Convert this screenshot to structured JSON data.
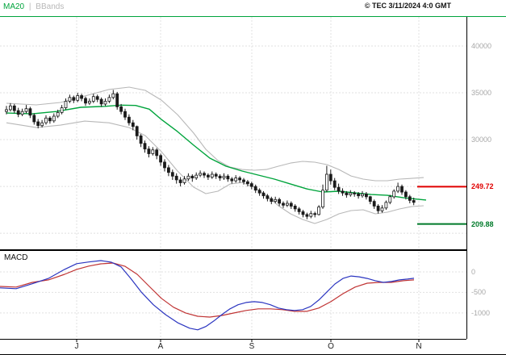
{
  "header": {
    "legend": {
      "ma20_label": "MA20",
      "separator": "|",
      "bbands_label": "BBands"
    },
    "copyright": "© TEC 3/11/2024 4:0 GMT"
  },
  "macd_label": "MACD",
  "colors": {
    "ma20": "#00a43c",
    "bbands": "#b8b8b8",
    "candle": "#1a1a1a",
    "macd": "#2b35c0",
    "signal": "#c03434",
    "resistance": "#e00000",
    "support": "#007a2a",
    "grid": "#e0e0e0",
    "axis": "#000000",
    "tick_text": "#a8a8a8",
    "header_line": "#00a43c"
  },
  "chart_data": {
    "type": "candlestick_with_macd",
    "title": "",
    "x_axis": {
      "tick_labels": [
        "J",
        "A",
        "S",
        "O",
        "N"
      ],
      "tick_x": [
        95,
        199,
        312,
        410,
        519
      ]
    },
    "price_panel": {
      "ylim": [
        18200,
        43100
      ],
      "yticks": [
        {
          "v": 40000,
          "label": "40000"
        },
        {
          "v": 35000,
          "label": "35000"
        },
        {
          "v": 30000,
          "label": "30000"
        }
      ],
      "gridlines": [
        40000,
        35000,
        30000,
        25000,
        20000
      ],
      "resistance": {
        "value": 24972,
        "label": "249.72"
      },
      "support": {
        "value": 20988,
        "label": "209.88"
      },
      "candles": [
        [
          33000,
          33600,
          32700,
          33200
        ],
        [
          33200,
          33900,
          33000,
          33600
        ],
        [
          33600,
          33800,
          32800,
          33100
        ],
        [
          33100,
          33400,
          32400,
          32700
        ],
        [
          32700,
          33300,
          32500,
          33000
        ],
        [
          33000,
          33700,
          32800,
          33300
        ],
        [
          33300,
          33500,
          32300,
          32600
        ],
        [
          32600,
          32800,
          31600,
          31900
        ],
        [
          31900,
          32200,
          31200,
          31500
        ],
        [
          31500,
          32100,
          31300,
          31800
        ],
        [
          31800,
          32600,
          31600,
          32300
        ],
        [
          32300,
          32500,
          31700,
          32000
        ],
        [
          32000,
          32800,
          31800,
          32500
        ],
        [
          32500,
          33200,
          32300,
          32900
        ],
        [
          32900,
          33700,
          32700,
          33400
        ],
        [
          33400,
          34400,
          33200,
          34100
        ],
        [
          34100,
          34800,
          33900,
          34500
        ],
        [
          34500,
          34700,
          33900,
          34200
        ],
        [
          34200,
          35000,
          34000,
          34700
        ],
        [
          34700,
          34900,
          34100,
          34400
        ],
        [
          34400,
          34600,
          33600,
          33900
        ],
        [
          33900,
          34400,
          33700,
          34100
        ],
        [
          34100,
          34900,
          33900,
          34600
        ],
        [
          34600,
          34800,
          34000,
          34300
        ],
        [
          34300,
          34500,
          33500,
          33800
        ],
        [
          33800,
          34400,
          33600,
          34100
        ],
        [
          34100,
          34800,
          33900,
          34500
        ],
        [
          34500,
          35300,
          34300,
          34900
        ],
        [
          34900,
          35100,
          33200,
          33500
        ],
        [
          33500,
          33800,
          32700,
          33000
        ],
        [
          33000,
          33300,
          32100,
          32400
        ],
        [
          32400,
          32700,
          31500,
          31800
        ],
        [
          31800,
          32100,
          31000,
          31400
        ],
        [
          31400,
          31500,
          30000,
          30400
        ],
        [
          30400,
          30600,
          29200,
          29600
        ],
        [
          29600,
          29900,
          28600,
          29000
        ],
        [
          29000,
          29300,
          28100,
          28500
        ],
        [
          28500,
          29200,
          28300,
          28900
        ],
        [
          28900,
          29100,
          27900,
          28300
        ],
        [
          28300,
          28500,
          27200,
          27600
        ],
        [
          27600,
          27900,
          26600,
          27000
        ],
        [
          27000,
          27300,
          26100,
          26500
        ],
        [
          26500,
          26800,
          25700,
          26100
        ],
        [
          26100,
          26400,
          25300,
          25700
        ],
        [
          25700,
          26000,
          25000,
          25400
        ],
        [
          25400,
          26100,
          25200,
          25800
        ],
        [
          25800,
          26400,
          25600,
          26100
        ],
        [
          26100,
          26300,
          25500,
          25900
        ],
        [
          25900,
          26500,
          25700,
          26200
        ],
        [
          26200,
          26700,
          26000,
          26400
        ],
        [
          26400,
          26600,
          25900,
          26200
        ],
        [
          26200,
          26400,
          25700,
          26000
        ],
        [
          26000,
          26600,
          25800,
          26300
        ],
        [
          26300,
          26500,
          25800,
          26100
        ],
        [
          26100,
          26300,
          25600,
          25900
        ],
        [
          25900,
          26400,
          25700,
          26100
        ],
        [
          26100,
          26300,
          25500,
          25800
        ],
        [
          25800,
          26000,
          25300,
          25600
        ],
        [
          25600,
          26200,
          25400,
          25900
        ],
        [
          25900,
          26100,
          25400,
          25700
        ],
        [
          25700,
          25900,
          25200,
          25500
        ],
        [
          25500,
          25700,
          25000,
          25300
        ],
        [
          25300,
          25500,
          24700,
          25000
        ],
        [
          25000,
          25200,
          24300,
          24600
        ],
        [
          24600,
          24800,
          24000,
          24300
        ],
        [
          24300,
          24500,
          23700,
          24000
        ],
        [
          24000,
          24200,
          23400,
          23700
        ],
        [
          23700,
          23900,
          23100,
          23400
        ],
        [
          23400,
          23900,
          23200,
          23600
        ],
        [
          23600,
          23800,
          22900,
          23200
        ],
        [
          23200,
          23400,
          22700,
          23000
        ],
        [
          23000,
          23500,
          22800,
          23200
        ],
        [
          23200,
          23400,
          22600,
          22900
        ],
        [
          22900,
          23100,
          22300,
          22600
        ],
        [
          22600,
          22800,
          22000,
          22300
        ],
        [
          22300,
          22500,
          21700,
          22000
        ],
        [
          22000,
          22200,
          21500,
          21800
        ],
        [
          21800,
          22400,
          21600,
          22100
        ],
        [
          22100,
          22300,
          21700,
          22000
        ],
        [
          22000,
          23000,
          21900,
          22800
        ],
        [
          22800,
          25200,
          22600,
          24600
        ],
        [
          24600,
          27200,
          24400,
          26300
        ],
        [
          26300,
          26800,
          25200,
          25600
        ],
        [
          25600,
          25900,
          24600,
          24900
        ],
        [
          24900,
          25300,
          24200,
          24500
        ],
        [
          24500,
          24800,
          24000,
          24300
        ],
        [
          24300,
          24500,
          23800,
          24100
        ],
        [
          24100,
          24600,
          23900,
          24300
        ],
        [
          24300,
          24500,
          23900,
          24200
        ],
        [
          24200,
          24400,
          23700,
          24000
        ],
        [
          24000,
          24500,
          23800,
          24200
        ],
        [
          24200,
          24400,
          23600,
          23900
        ],
        [
          23900,
          24000,
          23100,
          23400
        ],
        [
          23400,
          23600,
          22600,
          22900
        ],
        [
          22900,
          23100,
          22100,
          22400
        ],
        [
          22400,
          23000,
          22200,
          22700
        ],
        [
          22700,
          23500,
          22500,
          23300
        ],
        [
          23300,
          24100,
          23100,
          23900
        ],
        [
          23900,
          24700,
          23700,
          24500
        ],
        [
          24500,
          25400,
          24300,
          25000
        ],
        [
          25000,
          25200,
          24100,
          24400
        ],
        [
          24400,
          24600,
          23600,
          23900
        ],
        [
          23900,
          24100,
          23200,
          23500
        ],
        [
          23500,
          23800,
          23000,
          23300
        ]
      ],
      "ma20": [
        [
          8,
          32840
        ],
        [
          40,
          32750
        ],
        [
          70,
          33000
        ],
        [
          100,
          33450
        ],
        [
          130,
          33550
        ],
        [
          150,
          33680
        ],
        [
          168,
          33650
        ],
        [
          185,
          33250
        ],
        [
          200,
          32150
        ],
        [
          220,
          30860
        ],
        [
          240,
          29400
        ],
        [
          260,
          28020
        ],
        [
          280,
          27160
        ],
        [
          300,
          26640
        ],
        [
          320,
          26210
        ],
        [
          340,
          25780
        ],
        [
          360,
          25260
        ],
        [
          380,
          24740
        ],
        [
          400,
          24400
        ],
        [
          420,
          24490
        ],
        [
          440,
          24310
        ],
        [
          460,
          24140
        ],
        [
          480,
          24050
        ],
        [
          500,
          23790
        ],
        [
          515,
          23650
        ],
        [
          528,
          23550
        ]
      ],
      "bb_upper": [
        [
          8,
          33880
        ],
        [
          45,
          33710
        ],
        [
          75,
          33970
        ],
        [
          105,
          34660
        ],
        [
          135,
          35350
        ],
        [
          160,
          35600
        ],
        [
          180,
          35260
        ],
        [
          200,
          34220
        ],
        [
          220,
          32670
        ],
        [
          240,
          30690
        ],
        [
          255,
          28970
        ],
        [
          270,
          27760
        ],
        [
          285,
          27070
        ],
        [
          300,
          26810
        ],
        [
          315,
          26730
        ],
        [
          330,
          26810
        ],
        [
          345,
          27160
        ],
        [
          360,
          27500
        ],
        [
          375,
          27680
        ],
        [
          390,
          27590
        ],
        [
          405,
          27330
        ],
        [
          420,
          26810
        ],
        [
          435,
          26120
        ],
        [
          450,
          25780
        ],
        [
          465,
          25610
        ],
        [
          480,
          25610
        ],
        [
          495,
          25780
        ],
        [
          510,
          25860
        ],
        [
          525,
          25950
        ]
      ],
      "bb_lower": [
        [
          8,
          31800
        ],
        [
          45,
          31290
        ],
        [
          75,
          31550
        ],
        [
          105,
          31980
        ],
        [
          135,
          31800
        ],
        [
          160,
          31290
        ],
        [
          180,
          30430
        ],
        [
          200,
          28710
        ],
        [
          220,
          26640
        ],
        [
          240,
          24920
        ],
        [
          255,
          24230
        ],
        [
          270,
          24490
        ],
        [
          285,
          25260
        ],
        [
          300,
          25430
        ],
        [
          315,
          24920
        ],
        [
          330,
          24060
        ],
        [
          345,
          22940
        ],
        [
          360,
          22080
        ],
        [
          375,
          21470
        ],
        [
          390,
          21040
        ],
        [
          405,
          21470
        ],
        [
          420,
          22080
        ],
        [
          435,
          22420
        ],
        [
          450,
          22510
        ],
        [
          465,
          22080
        ],
        [
          480,
          22250
        ],
        [
          495,
          22590
        ],
        [
          510,
          22850
        ],
        [
          525,
          22940
        ]
      ]
    },
    "macd_panel": {
      "ylim": [
        -1630,
        490
      ],
      "yticks": [
        {
          "v": 0,
          "label": "0"
        },
        {
          "v": -500,
          "label": "-500"
        },
        {
          "v": -1000,
          "label": "-1000"
        }
      ],
      "macd": [
        [
          0,
          -390
        ],
        [
          20,
          -410
        ],
        [
          40,
          -290
        ],
        [
          60,
          -160
        ],
        [
          80,
          60
        ],
        [
          95,
          200
        ],
        [
          110,
          240
        ],
        [
          125,
          275
        ],
        [
          138,
          235
        ],
        [
          150,
          120
        ],
        [
          162,
          -160
        ],
        [
          175,
          -490
        ],
        [
          190,
          -800
        ],
        [
          205,
          -1040
        ],
        [
          220,
          -1235
        ],
        [
          235,
          -1370
        ],
        [
          245,
          -1410
        ],
        [
          255,
          -1330
        ],
        [
          265,
          -1195
        ],
        [
          275,
          -1040
        ],
        [
          285,
          -900
        ],
        [
          295,
          -800
        ],
        [
          305,
          -745
        ],
        [
          315,
          -725
        ],
        [
          325,
          -745
        ],
        [
          335,
          -800
        ],
        [
          345,
          -880
        ],
        [
          355,
          -920
        ],
        [
          365,
          -940
        ],
        [
          375,
          -920
        ],
        [
          385,
          -840
        ],
        [
          395,
          -685
        ],
        [
          405,
          -490
        ],
        [
          415,
          -295
        ],
        [
          425,
          -160
        ],
        [
          435,
          -100
        ],
        [
          445,
          -120
        ],
        [
          455,
          -160
        ],
        [
          465,
          -215
        ],
        [
          475,
          -255
        ],
        [
          485,
          -235
        ],
        [
          495,
          -195
        ],
        [
          505,
          -175
        ],
        [
          513,
          -155
        ]
      ],
      "signal": [
        [
          0,
          -355
        ],
        [
          20,
          -370
        ],
        [
          40,
          -255
        ],
        [
          60,
          -195
        ],
        [
          80,
          -60
        ],
        [
          95,
          60
        ],
        [
          110,
          140
        ],
        [
          125,
          195
        ],
        [
          140,
          215
        ],
        [
          155,
          135
        ],
        [
          170,
          -60
        ],
        [
          185,
          -355
        ],
        [
          200,
          -645
        ],
        [
          215,
          -860
        ],
        [
          230,
          -1000
        ],
        [
          245,
          -1080
        ],
        [
          260,
          -1100
        ],
        [
          275,
          -1060
        ],
        [
          290,
          -1000
        ],
        [
          305,
          -940
        ],
        [
          320,
          -900
        ],
        [
          335,
          -900
        ],
        [
          350,
          -920
        ],
        [
          365,
          -960
        ],
        [
          380,
          -960
        ],
        [
          395,
          -880
        ],
        [
          410,
          -725
        ],
        [
          425,
          -530
        ],
        [
          440,
          -370
        ],
        [
          455,
          -275
        ],
        [
          470,
          -255
        ],
        [
          485,
          -255
        ],
        [
          500,
          -215
        ],
        [
          513,
          -195
        ]
      ]
    }
  }
}
